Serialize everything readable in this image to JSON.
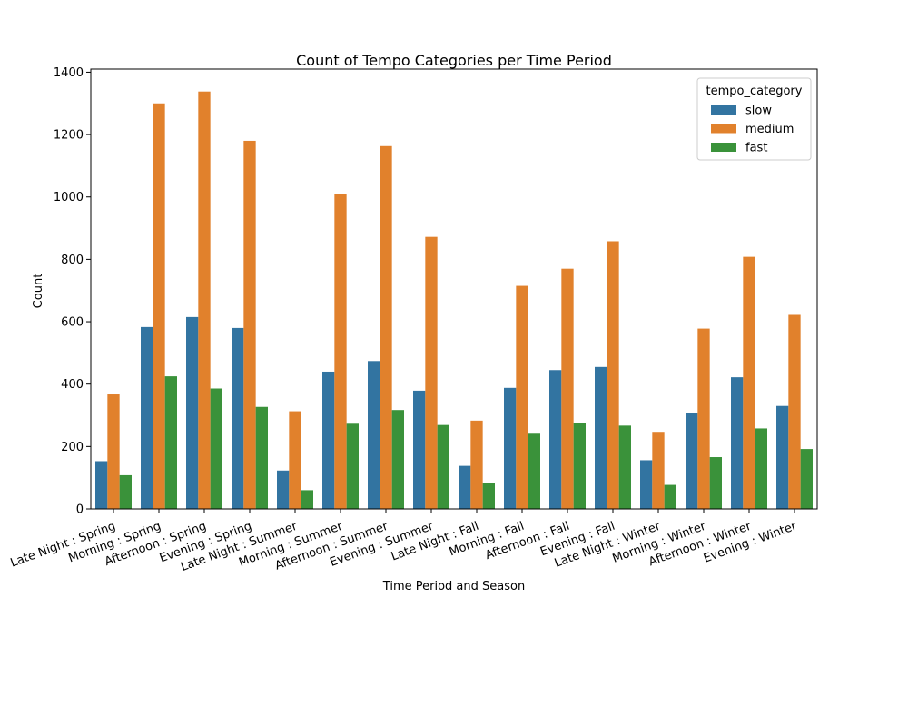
{
  "chart_data": {
    "type": "bar",
    "title": "Count of Tempo Categories per Time Period",
    "xlabel": "Time Period and Season",
    "ylabel": "Count",
    "ylim": [
      0,
      1410
    ],
    "yticks": [
      0,
      200,
      400,
      600,
      800,
      1000,
      1200,
      1400
    ],
    "grid": false,
    "legend": {
      "title": "tempo_category",
      "position": "top-right"
    },
    "categories": [
      "Late Night : Spring",
      "Morning : Spring",
      "Afternoon : Spring",
      "Evening : Spring",
      "Late Night : Summer",
      "Morning : Summer",
      "Afternoon : Summer",
      "Evening : Summer",
      "Late Night : Fall",
      "Morning : Fall",
      "Afternoon : Fall",
      "Evening : Fall",
      "Late Night : Winter",
      "Morning : Winter",
      "Afternoon : Winter",
      "Evening : Winter"
    ],
    "series": [
      {
        "name": "slow",
        "color": "#3274a1",
        "values": [
          153,
          583,
          615,
          580,
          123,
          440,
          474,
          379,
          138,
          388,
          445,
          455,
          156,
          308,
          422,
          330
        ]
      },
      {
        "name": "medium",
        "color": "#e1812c",
        "values": [
          367,
          1300,
          1338,
          1180,
          313,
          1010,
          1163,
          872,
          283,
          715,
          770,
          858,
          247,
          578,
          808,
          622
        ]
      },
      {
        "name": "fast",
        "color": "#3a923a",
        "values": [
          108,
          425,
          386,
          327,
          60,
          273,
          317,
          269,
          83,
          241,
          276,
          267,
          77,
          166,
          258,
          192
        ]
      }
    ]
  }
}
